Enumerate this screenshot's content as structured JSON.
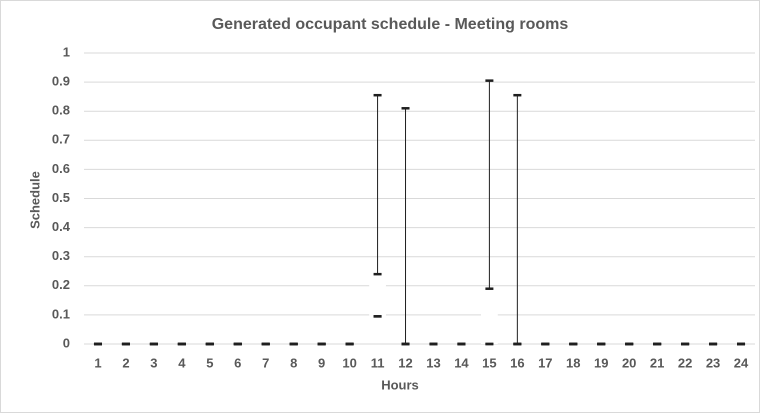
{
  "chart_data": {
    "type": "box",
    "title": "Generated occupant schedule - Meeting rooms",
    "x_label": "Hours",
    "y_label": "Schedule",
    "categories": [
      "1",
      "2",
      "3",
      "4",
      "5",
      "6",
      "7",
      "8",
      "9",
      "10",
      "11",
      "12",
      "13",
      "14",
      "15",
      "16",
      "17",
      "18",
      "19",
      "20",
      "21",
      "22",
      "23",
      "24"
    ],
    "min": [
      0,
      0,
      0,
      0,
      0,
      0,
      0,
      0,
      0,
      0,
      0.095,
      0,
      0,
      0,
      0,
      0,
      0,
      0,
      0,
      0,
      0,
      0,
      0,
      0
    ],
    "q1": [
      0,
      0,
      0,
      0,
      0,
      0,
      0,
      0,
      0,
      0,
      0.095,
      0,
      0,
      0,
      0,
      0,
      0,
      0,
      0,
      0,
      0,
      0,
      0,
      0
    ],
    "median": [
      0,
      0,
      0,
      0,
      0,
      0,
      0,
      0,
      0,
      0,
      0.095,
      0,
      0,
      0,
      0,
      0,
      0,
      0,
      0,
      0,
      0,
      0,
      0,
      0
    ],
    "q3": [
      0,
      0,
      0,
      0,
      0,
      0,
      0,
      0,
      0,
      0,
      0.24,
      0,
      0,
      0,
      0.19,
      0,
      0,
      0,
      0,
      0,
      0,
      0,
      0,
      0
    ],
    "max": [
      0,
      0,
      0,
      0,
      0,
      0,
      0,
      0,
      0,
      0,
      0.855,
      0.81,
      0,
      0,
      0.905,
      0.855,
      0,
      0,
      0,
      0,
      0,
      0,
      0,
      0
    ],
    "color": "#1f1f1f",
    "ylim": [
      0,
      1
    ],
    "yticks": [
      0,
      0.1,
      0.2,
      0.3,
      0.4,
      0.5,
      0.6,
      0.7,
      0.8,
      0.9,
      1
    ],
    "grid": true
  }
}
